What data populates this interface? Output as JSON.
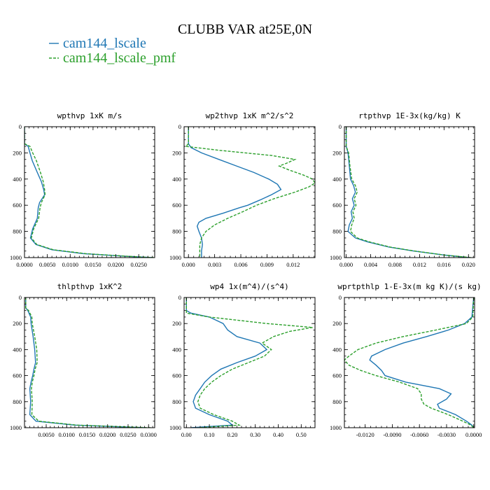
{
  "title": "CLUBB VAR at25E,0N",
  "colors": {
    "series1": "#1f77b4",
    "series2": "#2ca02c",
    "axis": "#000000"
  },
  "legend": [
    {
      "label": "cam144_lscale",
      "color": "#1f77b4",
      "dash": "solid"
    },
    {
      "label": "cam144_lscale_pmf",
      "color": "#2ca02c",
      "dash": "dashed"
    }
  ],
  "chart_data": [
    {
      "type": "line",
      "title": "wpthvp 1xK m/s",
      "xlim": [
        0,
        0.0285
      ],
      "xticks": [
        0,
        0.005,
        0.01,
        0.015,
        0.02,
        0.025
      ],
      "xtick_labels": [
        "0.0000",
        "0.0050",
        "0.0100",
        "0.0150",
        "0.0200",
        "0.0250"
      ],
      "ylim": [
        0,
        1000
      ],
      "yticks": [
        0,
        200,
        400,
        600,
        800,
        1000
      ],
      "ytick_labels": [
        "0",
        "200",
        "400",
        "600",
        "800",
        "1000"
      ],
      "y_inverted": true,
      "series": [
        {
          "name": "cam144_lscale",
          "y": [
            0,
            130,
            150,
            200,
            260,
            350,
            420,
            480,
            520,
            580,
            620,
            700,
            780,
            850,
            900,
            940,
            970,
            990,
            1000
          ],
          "x": [
            0,
            0,
            0.0008,
            0.0012,
            0.0017,
            0.0028,
            0.0037,
            0.0042,
            0.0044,
            0.0033,
            0.003,
            0.0028,
            0.0018,
            0.0013,
            0.0025,
            0.006,
            0.013,
            0.022,
            0.028
          ]
        },
        {
          "name": "cam144_lscale_pmf",
          "y": [
            0,
            130,
            150,
            200,
            260,
            350,
            420,
            480,
            520,
            580,
            620,
            700,
            780,
            850,
            900,
            940,
            970,
            990,
            1000
          ],
          "x": [
            0,
            0,
            0.0012,
            0.0018,
            0.0026,
            0.0035,
            0.0041,
            0.0044,
            0.0045,
            0.0037,
            0.0034,
            0.0031,
            0.002,
            0.0015,
            0.0027,
            0.0063,
            0.0135,
            0.0225,
            0.0285
          ]
        }
      ]
    },
    {
      "type": "line",
      "title": "wp2thvp 1xK m^2/s^2",
      "xlim": [
        -0.0005,
        0.0145
      ],
      "xticks": [
        0,
        0.003,
        0.006,
        0.009,
        0.012
      ],
      "xtick_labels": [
        "0.000",
        "0.003",
        "0.006",
        "0.009",
        "0.012"
      ],
      "ylim": [
        0,
        1000
      ],
      "yticks": [
        0,
        200,
        400,
        600,
        800,
        1000
      ],
      "ytick_labels": [
        "0",
        "200",
        "400",
        "600",
        "800",
        "1000"
      ],
      "y_inverted": true,
      "series": [
        {
          "name": "cam144_lscale",
          "y": [
            0,
            130,
            160,
            200,
            250,
            300,
            350,
            400,
            440,
            480,
            520,
            560,
            600,
            620,
            660,
            700,
            730,
            760,
            800,
            850,
            900,
            950,
            1000
          ],
          "x": [
            0,
            0,
            0.0003,
            0.0015,
            0.0035,
            0.0055,
            0.0075,
            0.0092,
            0.0102,
            0.0106,
            0.0095,
            0.0082,
            0.0068,
            0.0058,
            0.004,
            0.002,
            0.0012,
            0.001,
            0.0012,
            0.0015,
            0.0016,
            0.0015,
            0.0015
          ]
        },
        {
          "name": "cam144_lscale_pmf",
          "y": [
            0,
            130,
            150,
            180,
            220,
            250,
            280,
            300,
            330,
            370,
            400,
            430,
            460,
            500,
            550,
            600,
            650,
            700,
            750,
            800,
            850,
            900,
            950,
            1000
          ],
          "x": [
            0,
            0,
            -0.0003,
            0.0035,
            0.0095,
            0.0122,
            0.0112,
            0.0104,
            0.0115,
            0.0132,
            0.0142,
            0.0145,
            0.0138,
            0.0122,
            0.0098,
            0.0078,
            0.0062,
            0.0045,
            0.003,
            0.002,
            0.0015,
            0.0013,
            0.0013,
            0.0013
          ]
        }
      ]
    },
    {
      "type": "line",
      "title": "rtpthvp 1E-3x(kg/kg) K",
      "xlim": [
        -0.0003,
        0.021
      ],
      "xticks": [
        0,
        0.004,
        0.008,
        0.012,
        0.016,
        0.02
      ],
      "xtick_labels": [
        "0.000",
        "0.004",
        "0.008",
        "0.012",
        "0.016",
        "0.020"
      ],
      "ylim": [
        0,
        1000
      ],
      "yticks": [
        0,
        200,
        400,
        600,
        800,
        1000
      ],
      "ytick_labels": [
        "0",
        "200",
        "400",
        "600",
        "800",
        "1000"
      ],
      "y_inverted": true,
      "series": [
        {
          "name": "cam144_lscale",
          "y": [
            0,
            150,
            200,
            300,
            400,
            450,
            500,
            550,
            600,
            650,
            700,
            750,
            800,
            850,
            880,
            920,
            950,
            980,
            1000
          ],
          "x": [
            0,
            0,
            0.0003,
            0.0005,
            0.0007,
            0.0012,
            0.0015,
            0.001,
            0.0013,
            0.0008,
            0.001,
            0.0005,
            0.0003,
            0.0015,
            0.0035,
            0.007,
            0.011,
            0.016,
            0.02
          ]
        },
        {
          "name": "cam144_lscale_pmf",
          "y": [
            0,
            150,
            200,
            300,
            400,
            450,
            500,
            550,
            600,
            650,
            700,
            750,
            800,
            850,
            880,
            920,
            950,
            980,
            1000
          ],
          "x": [
            0,
            0,
            0.0004,
            0.0006,
            0.0009,
            0.0015,
            0.0018,
            0.0013,
            0.0016,
            0.0011,
            0.0013,
            0.0009,
            0.0007,
            0.0018,
            0.0038,
            0.0072,
            0.0112,
            0.016,
            0.0205
          ]
        }
      ]
    },
    {
      "type": "line",
      "title": "thlpthvp 1xK^2",
      "xlim": [
        -0.0003,
        0.0315
      ],
      "xticks": [
        0.005,
        0.01,
        0.015,
        0.02,
        0.025,
        0.03
      ],
      "xtick_labels": [
        "0.0050",
        "0.0100",
        "0.0150",
        "0.0200",
        "0.0250",
        "0.0300"
      ],
      "ylim": [
        0,
        1000
      ],
      "yticks": [
        0,
        200,
        400,
        600,
        800,
        1000
      ],
      "ytick_labels": [
        "0",
        "200",
        "400",
        "600",
        "800",
        "1000"
      ],
      "y_inverted": true,
      "series": [
        {
          "name": "cam144_lscale",
          "y": [
            0,
            80,
            100,
            150,
            200,
            300,
            400,
            500,
            550,
            600,
            650,
            700,
            800,
            900,
            950,
            980,
            1000
          ],
          "x": [
            0,
            0,
            0.0005,
            0.0012,
            0.0013,
            0.0018,
            0.0022,
            0.0024,
            0.002,
            0.0017,
            0.0013,
            0.001,
            0.0012,
            0.001,
            0.0025,
            0.012,
            0.029
          ]
        },
        {
          "name": "cam144_lscale_pmf",
          "y": [
            0,
            80,
            100,
            150,
            200,
            300,
            400,
            500,
            550,
            600,
            650,
            700,
            800,
            900,
            950,
            980,
            1000
          ],
          "x": [
            0,
            0,
            0.0007,
            0.0015,
            0.0016,
            0.0022,
            0.0027,
            0.0028,
            0.0023,
            0.002,
            0.0016,
            0.0014,
            0.0016,
            0.0015,
            0.0032,
            0.0125,
            0.0305
          ]
        }
      ]
    },
    {
      "type": "line",
      "title": "wp4 1x(m^4)/(s^4)",
      "xlim": [
        -0.01,
        0.56
      ],
      "xticks": [
        0,
        0.1,
        0.2,
        0.3,
        0.4,
        0.5
      ],
      "xtick_labels": [
        "0.00",
        "0.10",
        "0.20",
        "0.30",
        "0.40",
        "0.50"
      ],
      "ylim": [
        0,
        1000
      ],
      "yticks": [
        0,
        200,
        400,
        600,
        800,
        1000
      ],
      "ytick_labels": [
        "0",
        "200",
        "400",
        "600",
        "800",
        "1000"
      ],
      "y_inverted": true,
      "series": [
        {
          "name": "cam144_lscale",
          "y": [
            0,
            100,
            120,
            150,
            200,
            250,
            300,
            350,
            400,
            450,
            500,
            550,
            600,
            650,
            700,
            750,
            800,
            850,
            900,
            950,
            980,
            1000
          ],
          "x": [
            0,
            0,
            0.02,
            0.1,
            0.16,
            0.18,
            0.22,
            0.32,
            0.35,
            0.3,
            0.22,
            0.15,
            0.11,
            0.08,
            0.06,
            0.04,
            0.03,
            0.04,
            0.1,
            0.18,
            0.2,
            0.02
          ]
        },
        {
          "name": "cam144_lscale_pmf",
          "y": [
            0,
            120,
            150,
            200,
            230,
            260,
            300,
            350,
            400,
            450,
            500,
            550,
            600,
            650,
            700,
            750,
            800,
            850,
            900,
            950,
            980,
            1000
          ],
          "x": [
            0,
            0,
            0.1,
            0.35,
            0.55,
            0.45,
            0.38,
            0.33,
            0.37,
            0.34,
            0.27,
            0.2,
            0.15,
            0.11,
            0.08,
            0.06,
            0.05,
            0.06,
            0.12,
            0.2,
            0.23,
            0.05
          ]
        }
      ]
    },
    {
      "type": "line",
      "title": "wprtpthlp 1-E-3x(m kg K)/(s kg)",
      "xlim": [
        -0.0143,
        0.0001
      ],
      "xticks": [
        -0.012,
        -0.009,
        -0.006,
        -0.003,
        0
      ],
      "xtick_labels": [
        "-0.0120",
        "-0.0090",
        "-0.0060",
        "-0.0030",
        "0.0000"
      ],
      "ylim": [
        0,
        1000
      ],
      "yticks": [
        0,
        200,
        400,
        600,
        800,
        1000
      ],
      "ytick_labels": [
        "0",
        "200",
        "400",
        "600",
        "800",
        "1000"
      ],
      "y_inverted": true,
      "series": [
        {
          "name": "cam144_lscale",
          "y": [
            0,
            150,
            200,
            250,
            300,
            350,
            400,
            450,
            480,
            520,
            560,
            600,
            650,
            700,
            740,
            780,
            820,
            850,
            900,
            950,
            980,
            1000
          ],
          "x": [
            0,
            -0.0002,
            -0.001,
            -0.0028,
            -0.0052,
            -0.0078,
            -0.0098,
            -0.0113,
            -0.0115,
            -0.0108,
            -0.0102,
            -0.0098,
            -0.0075,
            -0.0038,
            -0.0025,
            -0.003,
            -0.004,
            -0.0038,
            -0.002,
            -0.0008,
            -0.0002,
            0
          ]
        },
        {
          "name": "cam144_lscale_pmf",
          "y": [
            0,
            150,
            200,
            250,
            300,
            350,
            400,
            450,
            480,
            520,
            560,
            600,
            650,
            700,
            740,
            780,
            820,
            850,
            900,
            950,
            980,
            1000
          ],
          "x": [
            0,
            -0.0001,
            -0.0008,
            -0.0042,
            -0.0078,
            -0.0108,
            -0.0128,
            -0.0138,
            -0.0143,
            -0.0138,
            -0.0125,
            -0.0108,
            -0.0082,
            -0.0062,
            -0.0058,
            -0.0058,
            -0.0055,
            -0.0047,
            -0.0028,
            -0.0012,
            -0.0003,
            0
          ]
        }
      ]
    }
  ]
}
